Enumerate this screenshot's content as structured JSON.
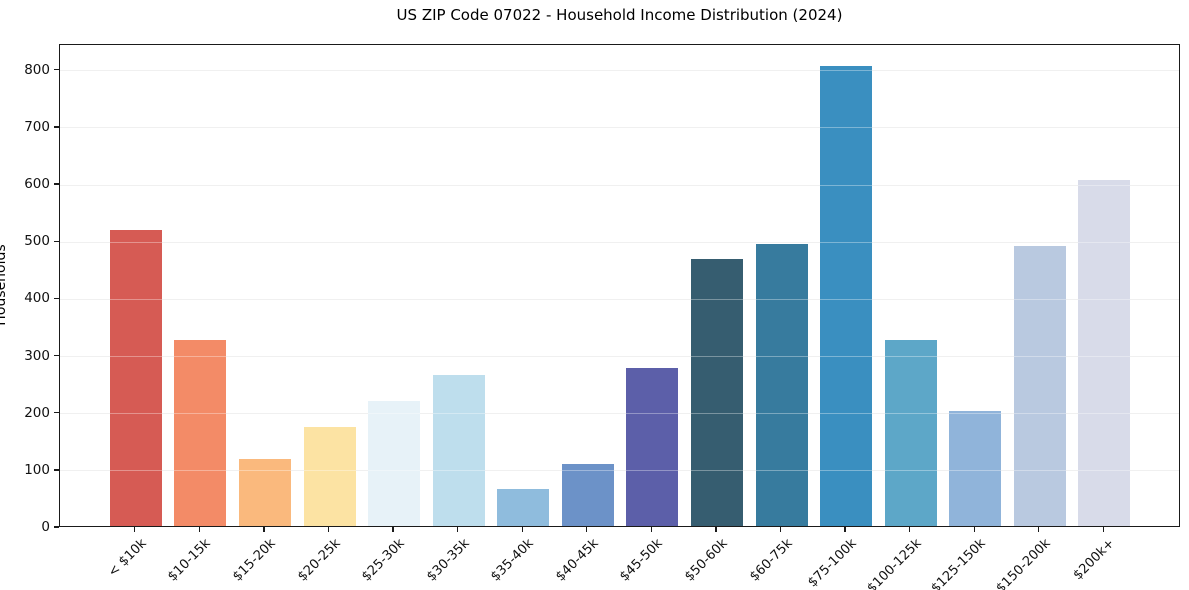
{
  "title": "US ZIP Code 07022 - Household Income Distribution (2024)",
  "chart_data": {
    "type": "bar",
    "title": "US ZIP Code 07022 - Household Income Distribution (2024)",
    "xlabel": "",
    "ylabel": "Households",
    "categories": [
      "< $10k",
      "$10-15k",
      "$15-20k",
      "$20-25k",
      "$25-30k",
      "$30-35k",
      "$35-40k",
      "$40-45k",
      "$45-50k",
      "$50-60k",
      "$60-75k",
      "$75-100k",
      "$100-125k",
      "$125-150k",
      "$150-200k",
      "$200k+"
    ],
    "values": [
      517,
      326,
      117,
      173,
      219,
      265,
      64,
      108,
      277,
      468,
      494,
      805,
      325,
      202,
      490,
      606
    ],
    "bar_colors": [
      "#d65b54",
      "#f38b67",
      "#fab97d",
      "#fce3a3",
      "#e7f2f8",
      "#bedeed",
      "#8fbcdd",
      "#6c92c8",
      "#5c5fa9",
      "#365d70",
      "#377b9e",
      "#3a8fc0",
      "#5da7c8",
      "#90b4da",
      "#b9c9e0",
      "#d8dbe9"
    ],
    "ylim": [
      0,
      845
    ],
    "yticks": [
      0,
      100,
      200,
      300,
      400,
      500,
      600,
      700,
      800
    ],
    "grid": "horizontal",
    "legend_position": "none",
    "background_color": "#ffffff",
    "spine_color": "#1a1a1a",
    "gridline_color": "#e8e8e8",
    "x_tick_rotation_deg": 45
  }
}
